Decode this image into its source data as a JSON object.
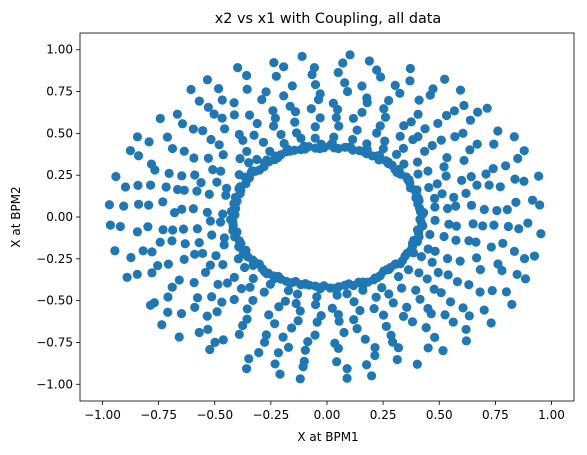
{
  "chart_data": {
    "type": "scatter",
    "title": "x2 vs x1 with Coupling, all data",
    "xlabel": "X at BPM1",
    "ylabel": "X at BPM2",
    "xlim": [
      -1.1,
      1.1
    ],
    "ylim": [
      -1.1,
      1.1
    ],
    "xticks": [
      -1.0,
      -0.75,
      -0.5,
      -0.25,
      0.0,
      0.25,
      0.5,
      0.75,
      1.0
    ],
    "xtick_labels": [
      "−1.00",
      "−0.75",
      "−0.50",
      "−0.25",
      "0.00",
      "0.25",
      "0.50",
      "0.75",
      "1.00"
    ],
    "yticks": [
      -1.0,
      -0.75,
      -0.5,
      -0.25,
      0.0,
      0.25,
      0.5,
      0.75,
      1.0
    ],
    "ytick_labels": [
      "−1.00",
      "−0.75",
      "−0.50",
      "−0.25",
      "0.00",
      "0.25",
      "0.50",
      "0.75",
      "1.00"
    ],
    "grid": false,
    "legend": "none",
    "marker_color": "#1f77b4",
    "structure": {
      "description_values": "points lie on rays from the origin arranged as an annulus",
      "ray_count": 40,
      "inner_radius": 0.41,
      "outer_radius": 1.0,
      "points_per_ray": 11,
      "ray_spread": 0.045
    }
  }
}
